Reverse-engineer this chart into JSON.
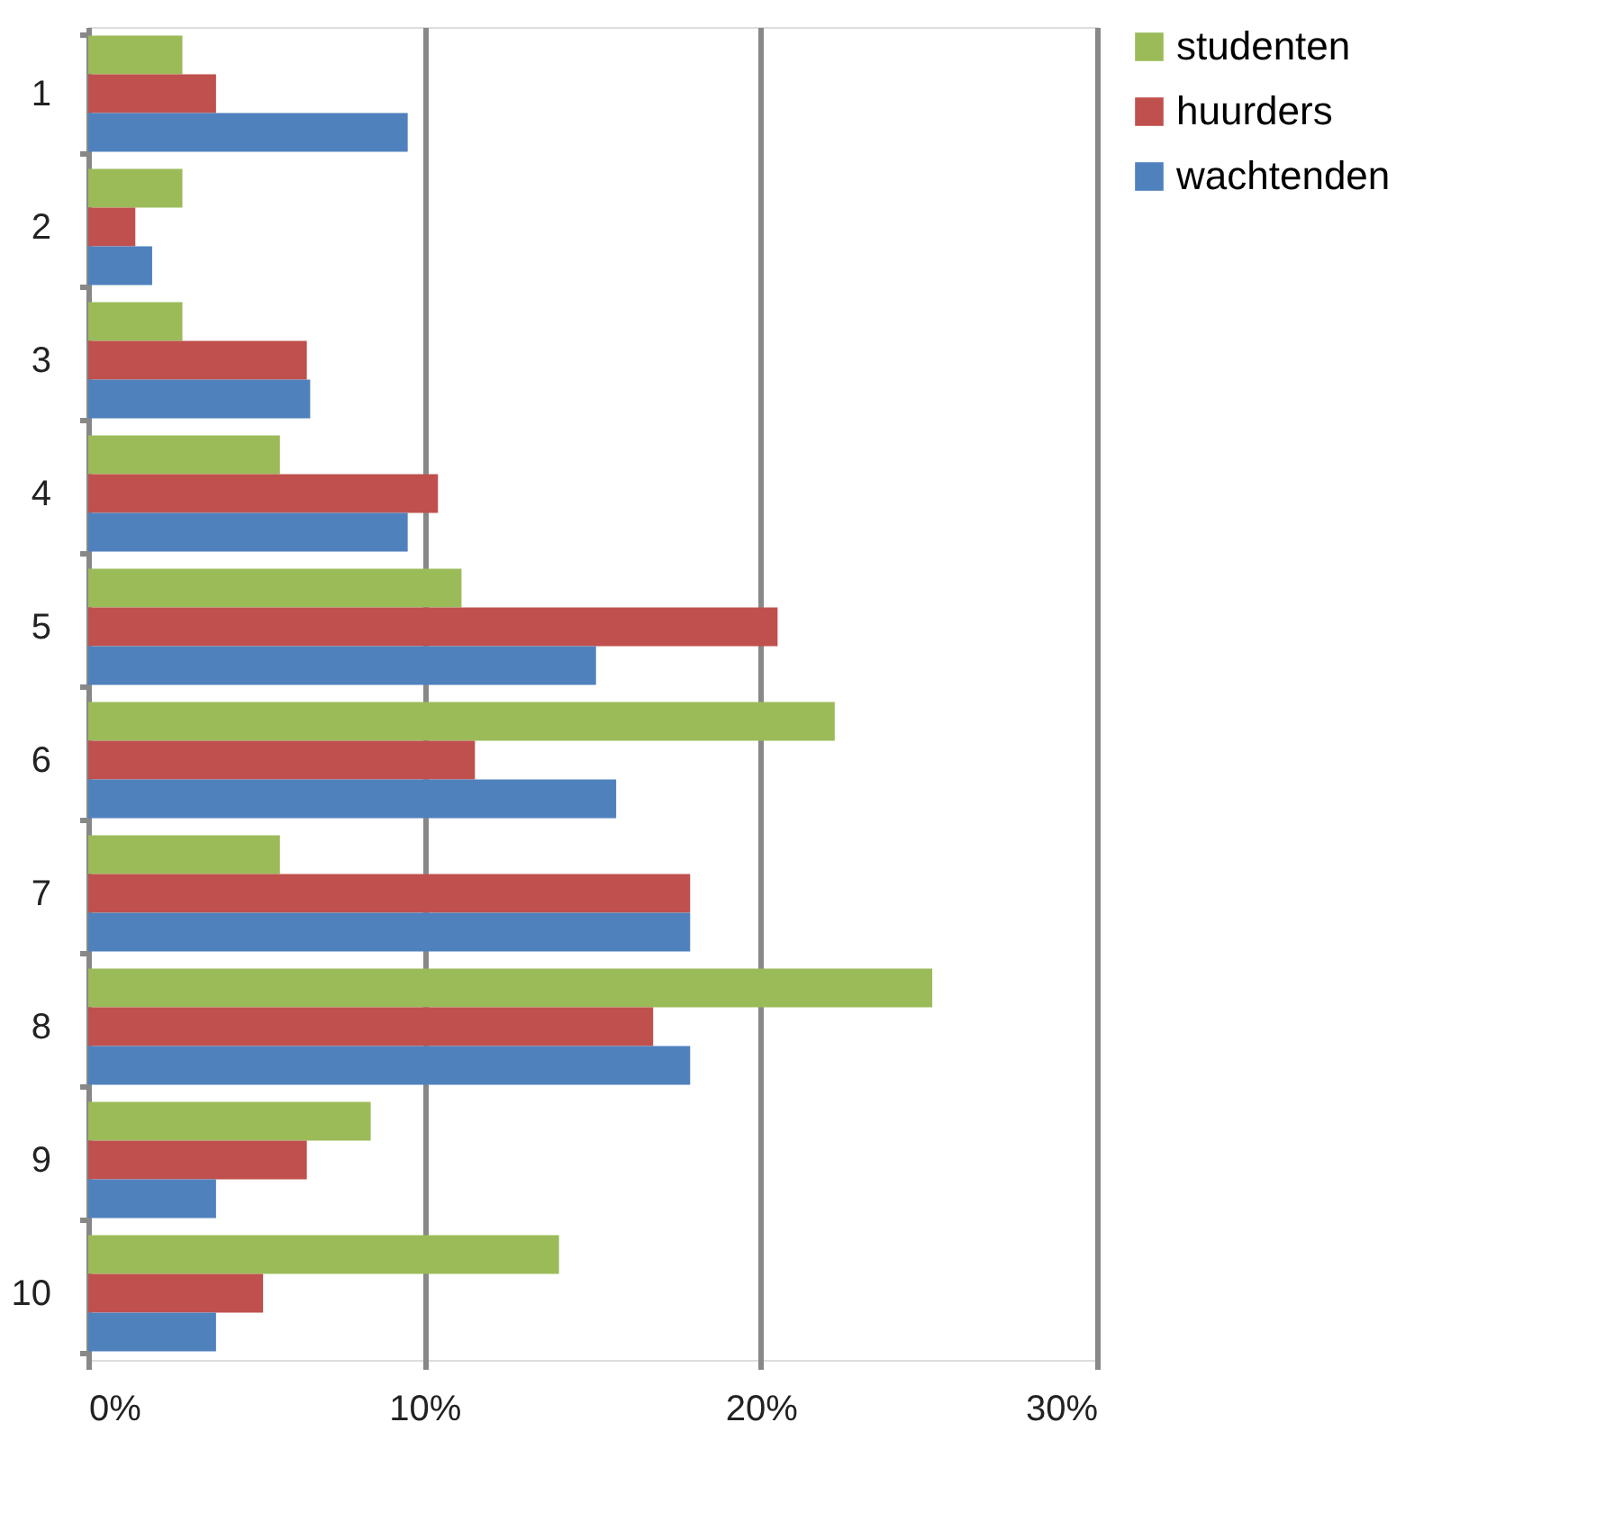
{
  "chart_data": {
    "type": "bar",
    "orientation": "horizontal",
    "categories": [
      "1",
      "2",
      "3",
      "4",
      "5",
      "6",
      "7",
      "8",
      "9",
      "10"
    ],
    "series": [
      {
        "name": "studenten",
        "color": "#9bbb59",
        "values": [
          2.8,
          2.8,
          2.8,
          5.7,
          11.1,
          22.2,
          5.7,
          25.1,
          8.4,
          14.0
        ]
      },
      {
        "name": "huurders",
        "color": "#c0504d",
        "values": [
          3.8,
          1.4,
          6.5,
          10.4,
          20.5,
          11.5,
          17.9,
          16.8,
          6.5,
          5.2
        ]
      },
      {
        "name": "wachtenden",
        "color": "#4f81bd",
        "values": [
          9.5,
          1.9,
          6.6,
          9.5,
          15.1,
          15.7,
          17.9,
          17.9,
          3.8,
          3.8
        ]
      }
    ],
    "xlim": [
      0,
      30
    ],
    "xticks": [
      {
        "value": 0,
        "label": "0%"
      },
      {
        "value": 10,
        "label": "10%"
      },
      {
        "value": 20,
        "label": "20%"
      },
      {
        "value": 30,
        "label": "30%"
      }
    ],
    "grid": "x",
    "legend": "right"
  }
}
